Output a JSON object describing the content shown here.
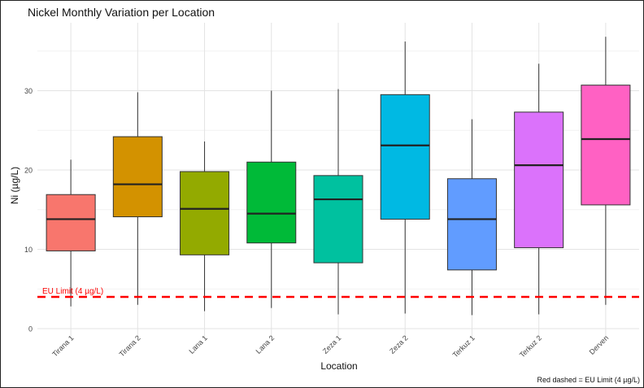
{
  "chart_data": {
    "type": "box",
    "title": "Nickel Monthly Variation per Location",
    "xlabel": "Location",
    "ylabel": "Ni (µg/L)",
    "ylim": [
      0,
      37.5
    ],
    "yticks": [
      0,
      10,
      20,
      30
    ],
    "grid": true,
    "categories": [
      "Tirana 1",
      "Tirana 2",
      "Lana 1",
      "Lana 2",
      "Zeza 1",
      "Zeza 2",
      "Terkuz 1",
      "Terkuz 2",
      "Derven"
    ],
    "boxes": [
      {
        "category": "Tirana 1",
        "min": 2.8,
        "q1": 9.8,
        "median": 13.8,
        "q3": 16.9,
        "max": 21.3,
        "color": "#F8766D"
      },
      {
        "category": "Tirana 2",
        "min": 3.0,
        "q1": 14.1,
        "median": 18.2,
        "q3": 24.2,
        "max": 29.8,
        "color": "#D39200"
      },
      {
        "category": "Lana 1",
        "min": 2.2,
        "q1": 9.3,
        "median": 15.1,
        "q3": 19.8,
        "max": 23.6,
        "color": "#93AA00"
      },
      {
        "category": "Lana 2",
        "min": 2.6,
        "q1": 10.8,
        "median": 14.5,
        "q3": 21.0,
        "max": 30.0,
        "color": "#00BA38"
      },
      {
        "category": "Zeza 1",
        "min": 1.8,
        "q1": 8.3,
        "median": 16.3,
        "q3": 19.3,
        "max": 30.2,
        "color": "#00C19F"
      },
      {
        "category": "Zeza 2",
        "min": 1.9,
        "q1": 13.8,
        "median": 23.1,
        "q3": 29.5,
        "max": 36.2,
        "color": "#00B9E3"
      },
      {
        "category": "Terkuz 1",
        "min": 1.7,
        "q1": 7.4,
        "median": 13.8,
        "q3": 18.9,
        "max": 26.4,
        "color": "#619CFF"
      },
      {
        "category": "Terkuz 2",
        "min": 1.8,
        "q1": 10.2,
        "median": 20.6,
        "q3": 27.3,
        "max": 33.4,
        "color": "#DB72FB"
      },
      {
        "category": "Derven",
        "min": 3.0,
        "q1": 15.6,
        "median": 23.9,
        "q3": 30.7,
        "max": 36.8,
        "color": "#FF61C3"
      }
    ],
    "reference_line": {
      "value": 4,
      "label": "EU Limit (4 µg/L)",
      "color": "#FF0000"
    },
    "caption": "Red dashed = EU Limit (4 µg/L)"
  }
}
